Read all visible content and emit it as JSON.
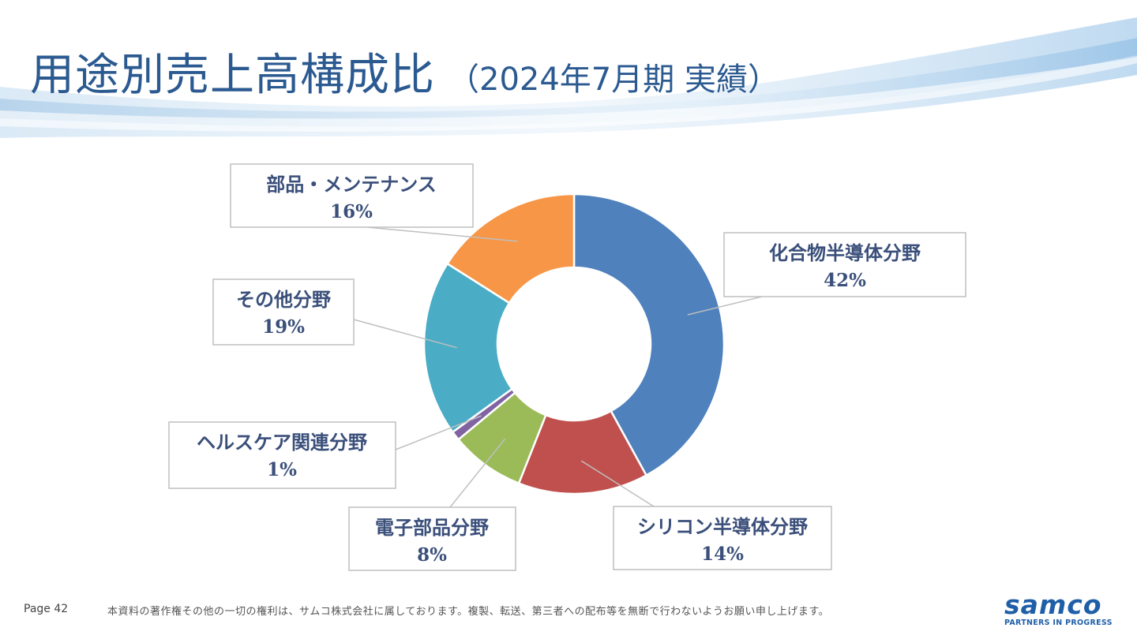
{
  "title": {
    "main": "用途別売上高構成比",
    "sub": "（2024年7月期 実績）"
  },
  "chart_data": {
    "type": "pie",
    "style": "donut",
    "categories": [
      "化合物半導体分野",
      "シリコン半導体分野",
      "電子部品分野",
      "ヘルスケア関連分野",
      "その他分野",
      "部品・メンテナンス"
    ],
    "values": [
      42,
      14,
      8,
      1,
      19,
      16
    ],
    "value_labels": [
      "42%",
      "14%",
      "8%",
      "1%",
      "19%",
      "16%"
    ],
    "colors": [
      "#4f81bd",
      "#c0504d",
      "#9bbb59",
      "#8064a2",
      "#4bacc6",
      "#f79646"
    ],
    "legend": "none"
  },
  "footer": {
    "page": "Page 42",
    "note": "本資料の著作権その他の一切の権利は、サムコ株式会社に属しております。複製、転送、第三者への配布等を無断で行わないようお願い申し上げます。"
  },
  "logo": {
    "word": "samco",
    "tagline": "PARTNERS IN PROGRESS"
  }
}
